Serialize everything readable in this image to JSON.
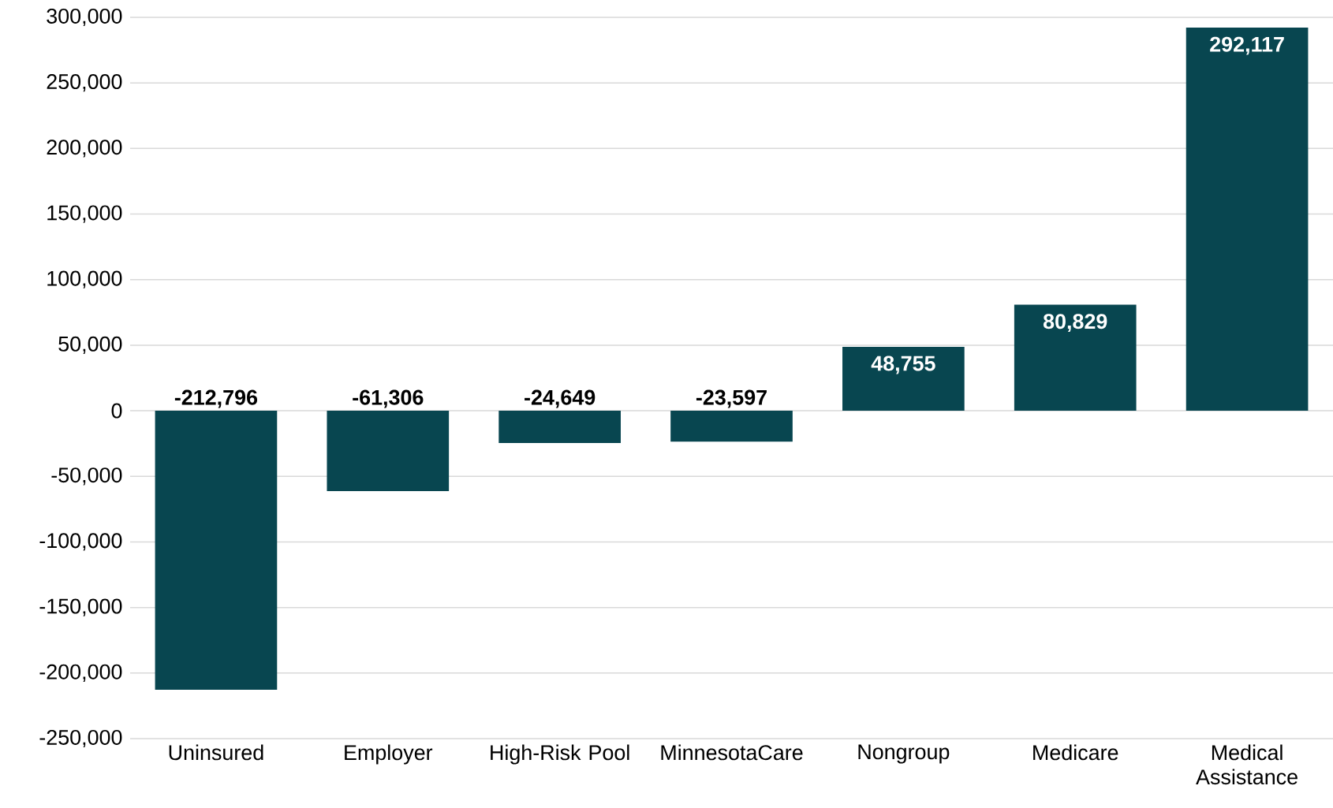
{
  "chart_data": {
    "type": "bar",
    "categories": [
      "Uninsured",
      "Employer",
      "High-Risk Pool",
      "MinnesotaCare",
      "Nongroup",
      "Medicare",
      "Medical Assistance"
    ],
    "values": [
      -212796,
      -61306,
      -24649,
      -23597,
      48755,
      80829,
      292117
    ],
    "value_labels": [
      "-212,796",
      "-61,306",
      "-24,649",
      "-23,597",
      "48,755",
      "80,829",
      "292,117"
    ],
    "color": "#084650",
    "ylim": [
      -250000,
      300000
    ],
    "yticks": [
      {
        "value": -250000,
        "label": "-250,000"
      },
      {
        "value": -200000,
        "label": "-200,000"
      },
      {
        "value": -150000,
        "label": "-150,000"
      },
      {
        "value": -100000,
        "label": "-100,000"
      },
      {
        "value": -50000,
        "label": "-50,000"
      },
      0,
      {
        "value": 50000,
        "label": "50,000"
      },
      {
        "value": 100000,
        "label": "100,000"
      },
      {
        "value": 150000,
        "label": "150,000"
      },
      {
        "value": 200000,
        "label": "200,000"
      },
      {
        "value": 250000,
        "label": "250,000"
      },
      {
        "value": 300000,
        "label": "300,000"
      }
    ],
    "grid": "y"
  }
}
